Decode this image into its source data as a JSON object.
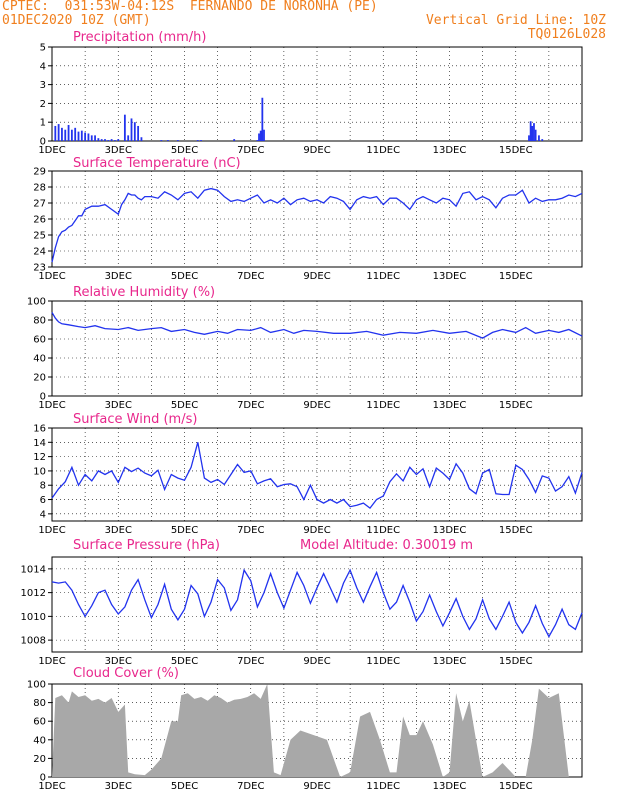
{
  "header": {
    "line1": "CPTEC:  031:53W-04:12S  FERNANDO DE NORONHA (PE)",
    "date": "01DEC2020 10Z (GMT)",
    "grid_note": "Vertical Grid Line: 10Z",
    "code": "TQ0126L028"
  },
  "colors": {
    "header": "#f07f1e",
    "title": "#e8278c",
    "series": "#2233ee",
    "cloud": "#a8a8a8",
    "grid": "#000000"
  },
  "chart_data": [
    {
      "type": "bar",
      "title": "Precipitation (mm/h)",
      "ylim": [
        0,
        5
      ],
      "yticks": [
        "0",
        "1",
        "2",
        "3",
        "4",
        "5"
      ],
      "xticks": [
        "1DEC",
        "3DEC",
        "5DEC",
        "7DEC",
        "9DEC",
        "11DEC",
        "13DEC",
        "15DEC"
      ],
      "x": [
        0.1,
        0.2,
        0.3,
        0.4,
        0.5,
        0.6,
        0.7,
        0.8,
        0.9,
        1.0,
        1.1,
        1.2,
        1.3,
        1.4,
        1.5,
        1.6,
        1.7,
        1.8,
        1.9,
        2.0,
        2.2,
        2.3,
        2.4,
        2.5,
        2.6,
        2.7,
        3.3,
        3.5,
        3.8,
        4.4,
        4.5,
        5.5,
        6.2,
        6.25,
        6.3,
        6.35,
        6.4,
        14.4,
        14.45,
        14.5,
        14.55,
        14.6,
        14.7,
        14.8
      ],
      "values": [
        0.8,
        0.9,
        0.7,
        0.6,
        0.85,
        0.6,
        0.7,
        0.5,
        0.55,
        0.45,
        0.4,
        0.3,
        0.3,
        0.15,
        0.1,
        0.1,
        0.05,
        0.1,
        0.05,
        0.1,
        1.4,
        0.3,
        1.2,
        1.0,
        0.8,
        0.2,
        0.05,
        0.05,
        0.05,
        0.05,
        0.05,
        0.1,
        0.05,
        0.4,
        0.55,
        2.3,
        0.6,
        0.3,
        1.05,
        0.8,
        0.95,
        0.6,
        0.3,
        0.1
      ]
    },
    {
      "type": "line",
      "title": "Surface Temperature (nC)",
      "ylim": [
        23,
        29
      ],
      "yticks": [
        "23",
        "24",
        "25",
        "26",
        "27",
        "28",
        "29"
      ],
      "xticks": [
        "1DEC",
        "3DEC",
        "5DEC",
        "7DEC",
        "9DEC",
        "11DEC",
        "13DEC",
        "15DEC"
      ],
      "x": [
        0,
        0.1,
        0.2,
        0.3,
        0.4,
        0.5,
        0.6,
        0.7,
        0.8,
        0.9,
        1.0,
        1.2,
        1.4,
        1.6,
        1.8,
        2.0,
        2.1,
        2.2,
        2.3,
        2.4,
        2.5,
        2.6,
        2.7,
        2.8,
        3.0,
        3.2,
        3.4,
        3.6,
        3.8,
        4.0,
        4.2,
        4.4,
        4.6,
        4.8,
        5.0,
        5.2,
        5.4,
        5.6,
        5.8,
        6.0,
        6.2,
        6.4,
        6.6,
        6.8,
        7.0,
        7.2,
        7.4,
        7.6,
        7.8,
        8.0,
        8.2,
        8.4,
        8.6,
        8.8,
        9.0,
        9.2,
        9.4,
        9.6,
        9.8,
        10.0,
        10.2,
        10.4,
        10.6,
        10.8,
        11.0,
        11.2,
        11.4,
        11.6,
        11.8,
        12.0,
        12.2,
        12.4,
        12.6,
        12.8,
        13.0,
        13.2,
        13.4,
        13.6,
        13.8,
        14.0,
        14.2,
        14.4,
        14.6,
        14.8,
        15.0,
        15.2,
        15.4,
        15.6,
        15.8,
        16.0
      ],
      "values": [
        23.3,
        24.2,
        24.9,
        25.2,
        25.3,
        25.5,
        25.6,
        25.9,
        26.2,
        26.2,
        26.6,
        26.8,
        26.8,
        26.9,
        26.6,
        26.3,
        26.9,
        27.2,
        27.6,
        27.5,
        27.5,
        27.3,
        27.2,
        27.4,
        27.4,
        27.3,
        27.7,
        27.5,
        27.2,
        27.6,
        27.7,
        27.3,
        27.8,
        27.9,
        27.8,
        27.4,
        27.1,
        27.2,
        27.1,
        27.3,
        27.5,
        27.0,
        27.2,
        27.0,
        27.3,
        26.9,
        27.2,
        27.3,
        27.1,
        27.2,
        27.0,
        27.4,
        27.3,
        27.1,
        26.6,
        27.2,
        27.4,
        27.3,
        27.4,
        26.9,
        27.3,
        27.3,
        27.0,
        26.6,
        27.2,
        27.4,
        27.2,
        27.0,
        27.3,
        27.2,
        26.8,
        27.6,
        27.7,
        27.2,
        27.4,
        27.2,
        26.7,
        27.3,
        27.5,
        27.5,
        27.8,
        27.0,
        27.3,
        27.1,
        27.2,
        27.2,
        27.3,
        27.5,
        27.4,
        27.6
      ]
    },
    {
      "type": "line",
      "title": "Relative Humidity (%)",
      "ylim": [
        0,
        100
      ],
      "yticks": [
        "0",
        "20",
        "40",
        "60",
        "80",
        "100"
      ],
      "xticks": [
        "1DEC",
        "3DEC",
        "5DEC",
        "7DEC",
        "9DEC",
        "11DEC",
        "13DEC",
        "15DEC"
      ],
      "x": [
        0,
        0.1,
        0.2,
        0.3,
        0.5,
        0.8,
        1.0,
        1.3,
        1.6,
        2.0,
        2.3,
        2.6,
        3.0,
        3.3,
        3.6,
        4.0,
        4.3,
        4.6,
        5.0,
        5.3,
        5.6,
        6.0,
        6.3,
        6.6,
        7.0,
        7.3,
        7.6,
        8.0,
        8.5,
        9.0,
        9.5,
        10.0,
        10.5,
        11.0,
        11.5,
        12.0,
        12.5,
        13.0,
        13.3,
        13.6,
        14.0,
        14.3,
        14.6,
        15.0,
        15.3,
        15.6,
        16.0
      ],
      "values": [
        88,
        82,
        78,
        76,
        75,
        73,
        72,
        74,
        71,
        70,
        72,
        69,
        71,
        72,
        68,
        70,
        67,
        65,
        68,
        66,
        70,
        69,
        72,
        67,
        70,
        66,
        69,
        68,
        66,
        66,
        68,
        64,
        67,
        66,
        69,
        66,
        68,
        61,
        67,
        70,
        67,
        72,
        66,
        69,
        67,
        70,
        63
      ]
    },
    {
      "type": "line",
      "title": "Surface Wind (m/s)",
      "ylim": [
        3,
        16
      ],
      "yticks": [
        "4",
        "6",
        "8",
        "10",
        "12",
        "14",
        "16"
      ],
      "xticks": [
        "1DEC",
        "3DEC",
        "5DEC",
        "7DEC",
        "9DEC",
        "11DEC",
        "13DEC",
        "15DEC"
      ],
      "x": [
        0,
        0.2,
        0.4,
        0.6,
        0.8,
        1.0,
        1.2,
        1.4,
        1.6,
        1.8,
        2.0,
        2.2,
        2.4,
        2.6,
        2.8,
        3.0,
        3.2,
        3.4,
        3.6,
        3.8,
        4.0,
        4.2,
        4.4,
        4.6,
        4.8,
        5.0,
        5.2,
        5.4,
        5.6,
        5.8,
        6.0,
        6.2,
        6.4,
        6.6,
        6.8,
        7.0,
        7.2,
        7.4,
        7.6,
        7.8,
        8.0,
        8.2,
        8.4,
        8.6,
        8.8,
        9.0,
        9.2,
        9.4,
        9.6,
        9.8,
        10.0,
        10.2,
        10.4,
        10.6,
        10.8,
        11.0,
        11.2,
        11.4,
        11.6,
        11.8,
        12.0,
        12.2,
        12.4,
        12.6,
        12.8,
        13.0,
        13.2,
        13.4,
        13.6,
        13.8,
        14.0,
        14.2,
        14.4,
        14.6,
        14.8,
        15.0,
        15.2,
        15.4,
        15.6,
        15.8,
        16.0
      ],
      "values": [
        6.2,
        7.5,
        8.5,
        10.5,
        8.0,
        9.5,
        8.6,
        10.0,
        9.5,
        10.0,
        8.4,
        10.5,
        9.9,
        10.4,
        9.7,
        9.3,
        10.1,
        7.4,
        9.5,
        9.0,
        8.7,
        10.5,
        14.0,
        9.0,
        8.4,
        8.8,
        8.1,
        9.5,
        10.9,
        9.8,
        10.0,
        8.2,
        8.6,
        8.9,
        7.8,
        8.1,
        8.2,
        7.8,
        6.0,
        8.0,
        6.0,
        5.5,
        6.0,
        5.5,
        6.0,
        5.0,
        5.2,
        5.5,
        4.8,
        6.0,
        6.5,
        8.5,
        9.6,
        8.6,
        10.5,
        9.5,
        10.3,
        7.8,
        10.4,
        9.7,
        8.8,
        11.0,
        9.7,
        7.5,
        6.8,
        9.7,
        10.2,
        6.8,
        6.7,
        6.7,
        10.8,
        10.2,
        8.8,
        7.0,
        9.3,
        9.0,
        7.2,
        7.8,
        9.2,
        6.9,
        9.8
      ]
    },
    {
      "type": "line",
      "title": "Surface Pressure (hPa)",
      "annotation": "Model Altitude: 0.30019 m",
      "ylim": [
        1007,
        1015
      ],
      "yticks": [
        "1008",
        "1010",
        "1012",
        "1014"
      ],
      "xticks": [
        "1DEC",
        "3DEC",
        "5DEC",
        "7DEC",
        "9DEC",
        "11DEC",
        "13DEC",
        "15DEC"
      ],
      "x": [
        0,
        0.2,
        0.4,
        0.6,
        0.8,
        1.0,
        1.2,
        1.4,
        1.6,
        1.8,
        2.0,
        2.2,
        2.4,
        2.6,
        2.8,
        3.0,
        3.2,
        3.4,
        3.6,
        3.8,
        4.0,
        4.2,
        4.4,
        4.6,
        4.8,
        5.0,
        5.2,
        5.4,
        5.6,
        5.8,
        6.0,
        6.2,
        6.4,
        6.6,
        6.8,
        7.0,
        7.2,
        7.4,
        7.6,
        7.8,
        8.0,
        8.2,
        8.4,
        8.6,
        8.8,
        9.0,
        9.2,
        9.4,
        9.6,
        9.8,
        10.0,
        10.2,
        10.4,
        10.6,
        10.8,
        11.0,
        11.2,
        11.4,
        11.6,
        11.8,
        12.0,
        12.2,
        12.4,
        12.6,
        12.8,
        13.0,
        13.2,
        13.4,
        13.6,
        13.8,
        14.0,
        14.2,
        14.4,
        14.6,
        14.8,
        15.0,
        15.2,
        15.4,
        15.6,
        15.8,
        16.0
      ],
      "values": [
        1012.9,
        1012.8,
        1012.9,
        1012.2,
        1011.0,
        1010.0,
        1010.9,
        1012.0,
        1012.2,
        1011.0,
        1010.2,
        1010.8,
        1012.2,
        1013.1,
        1011.4,
        1009.9,
        1011.0,
        1012.7,
        1010.6,
        1009.7,
        1010.6,
        1012.6,
        1011.9,
        1010.0,
        1011.2,
        1013.1,
        1012.4,
        1010.5,
        1011.4,
        1013.9,
        1013.0,
        1010.8,
        1012.0,
        1013.6,
        1012.0,
        1010.7,
        1012.2,
        1013.7,
        1012.6,
        1011.1,
        1012.4,
        1013.6,
        1012.4,
        1011.2,
        1012.8,
        1013.9,
        1012.4,
        1011.2,
        1012.5,
        1013.7,
        1012.0,
        1010.6,
        1011.2,
        1012.6,
        1011.2,
        1009.6,
        1010.4,
        1011.8,
        1010.4,
        1009.2,
        1010.3,
        1011.5,
        1010.0,
        1008.9,
        1009.8,
        1011.4,
        1009.8,
        1008.9,
        1010.0,
        1011.2,
        1009.5,
        1008.6,
        1009.5,
        1010.9,
        1009.4,
        1008.3,
        1009.3,
        1010.6,
        1009.3,
        1008.9,
        1010.3
      ]
    },
    {
      "type": "area",
      "title": "Cloud Cover (%)",
      "ylim": [
        0,
        100
      ],
      "yticks": [
        "0",
        "20",
        "40",
        "60",
        "80",
        "100"
      ],
      "xticks": [
        "1DEC",
        "3DEC",
        "5DEC",
        "7DEC",
        "9DEC",
        "11DEC",
        "13DEC",
        "15DEC"
      ],
      "x": [
        0,
        0.1,
        0.3,
        0.5,
        0.6,
        0.8,
        1.0,
        1.2,
        1.4,
        1.6,
        1.8,
        2.0,
        2.2,
        2.3,
        2.5,
        2.8,
        3.0,
        3.3,
        3.6,
        3.8,
        3.9,
        4.1,
        4.3,
        4.5,
        4.7,
        4.9,
        5.1,
        5.3,
        5.5,
        5.7,
        5.9,
        6.1,
        6.3,
        6.5,
        6.7,
        6.9,
        7.2,
        7.5,
        7.9,
        8.3,
        8.7,
        9.0,
        9.3,
        9.6,
        9.9,
        10.2,
        10.4,
        10.6,
        10.8,
        11.0,
        11.2,
        11.5,
        11.8,
        12.0,
        12.2,
        12.4,
        12.6,
        12.8,
        13.0,
        13.3,
        13.6,
        14.0,
        14.3,
        14.5,
        14.7,
        15.0,
        15.3,
        15.6,
        15.8,
        16.0
      ],
      "values": [
        0,
        85,
        88,
        80,
        92,
        86,
        88,
        82,
        84,
        80,
        85,
        70,
        78,
        5,
        3,
        2,
        8,
        20,
        60,
        60,
        88,
        90,
        84,
        86,
        82,
        88,
        85,
        80,
        83,
        84,
        86,
        90,
        84,
        100,
        5,
        2,
        40,
        50,
        45,
        40,
        0,
        5,
        65,
        70,
        40,
        5,
        5,
        65,
        45,
        45,
        60,
        35,
        0,
        5,
        90,
        60,
        82,
        40,
        0,
        5,
        15,
        0,
        0,
        40,
        95,
        85,
        90,
        0,
        0,
        0
      ]
    }
  ]
}
